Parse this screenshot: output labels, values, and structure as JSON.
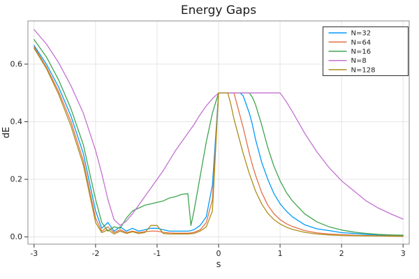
{
  "chart_data": {
    "type": "line",
    "title": "Energy Gaps",
    "xlabel": "s",
    "ylabel": "dE",
    "xlim": [
      -3.1,
      3.1
    ],
    "ylim": [
      -0.025,
      0.75
    ],
    "grid": true,
    "legend_position": "top-right",
    "xticks": [
      {
        "v": -3,
        "label": "-3"
      },
      {
        "v": -2,
        "label": "-2"
      },
      {
        "v": -1,
        "label": "-1"
      },
      {
        "v": 0,
        "label": "0"
      },
      {
        "v": 1,
        "label": "1"
      },
      {
        "v": 2,
        "label": "2"
      },
      {
        "v": 3,
        "label": "3"
      }
    ],
    "yticks": [
      {
        "v": 0.0,
        "label": "0.0"
      },
      {
        "v": 0.2,
        "label": "0.2"
      },
      {
        "v": 0.4,
        "label": "0.4"
      },
      {
        "v": 0.6,
        "label": "0.6"
      }
    ],
    "x": [
      -3.0,
      -2.8,
      -2.6,
      -2.4,
      -2.2,
      -2.0,
      -1.9,
      -1.8,
      -1.7,
      -1.6,
      -1.5,
      -1.4,
      -1.3,
      -1.2,
      -1.1,
      -1.0,
      -0.9,
      -0.8,
      -0.7,
      -0.6,
      -0.5,
      -0.45,
      -0.4,
      -0.3,
      -0.2,
      -0.1,
      0.0,
      0.1,
      0.15,
      0.2,
      0.25,
      0.3,
      0.35,
      0.4,
      0.5,
      0.55,
      0.6,
      0.7,
      0.8,
      0.9,
      1.0,
      1.1,
      1.2,
      1.4,
      1.6,
      1.8,
      2.0,
      2.2,
      2.4,
      2.6,
      2.8,
      3.0
    ],
    "series": [
      {
        "name": "N=32",
        "color": "#009AFA",
        "values": [
          0.665,
          0.6,
          0.52,
          0.42,
          0.29,
          0.09,
          0.03,
          0.05,
          0.02,
          0.035,
          0.02,
          0.03,
          0.02,
          0.025,
          0.03,
          0.03,
          0.025,
          0.02,
          0.02,
          0.02,
          0.02,
          0.022,
          0.025,
          0.04,
          0.07,
          0.18,
          0.5,
          0.5,
          0.5,
          0.5,
          0.5,
          0.5,
          0.5,
          0.49,
          0.43,
          0.39,
          0.34,
          0.26,
          0.2,
          0.15,
          0.115,
          0.09,
          0.07,
          0.042,
          0.028,
          0.022,
          0.015,
          0.012,
          0.009,
          0.007,
          0.006,
          0.005
        ]
      },
      {
        "name": "N=64",
        "color": "#E36F47",
        "values": [
          0.66,
          0.59,
          0.505,
          0.4,
          0.265,
          0.065,
          0.02,
          0.035,
          0.015,
          0.025,
          0.015,
          0.02,
          0.015,
          0.018,
          0.02,
          0.02,
          0.016,
          0.014,
          0.013,
          0.013,
          0.013,
          0.014,
          0.016,
          0.025,
          0.05,
          0.13,
          0.5,
          0.5,
          0.5,
          0.5,
          0.5,
          0.46,
          0.42,
          0.38,
          0.29,
          0.25,
          0.215,
          0.155,
          0.11,
          0.08,
          0.06,
          0.046,
          0.036,
          0.022,
          0.014,
          0.01,
          0.008,
          0.006,
          0.005,
          0.004,
          0.0035,
          0.003
        ]
      },
      {
        "name": "N=16",
        "color": "#3EA44E",
        "values": [
          0.685,
          0.625,
          0.545,
          0.445,
          0.32,
          0.13,
          0.05,
          0.02,
          0.035,
          0.03,
          0.065,
          0.09,
          0.1,
          0.11,
          0.115,
          0.12,
          0.125,
          0.135,
          0.14,
          0.148,
          0.15,
          0.04,
          0.09,
          0.21,
          0.33,
          0.43,
          0.5,
          0.5,
          0.5,
          0.5,
          0.5,
          0.5,
          0.5,
          0.5,
          0.5,
          0.485,
          0.46,
          0.39,
          0.31,
          0.245,
          0.195,
          0.155,
          0.125,
          0.08,
          0.052,
          0.035,
          0.024,
          0.017,
          0.012,
          0.009,
          0.007,
          0.006
        ]
      },
      {
        "name": "N=8",
        "color": "#C371D2",
        "values": [
          0.72,
          0.67,
          0.605,
          0.525,
          0.43,
          0.3,
          0.22,
          0.13,
          0.06,
          0.04,
          0.055,
          0.08,
          0.11,
          0.14,
          0.17,
          0.2,
          0.23,
          0.265,
          0.3,
          0.33,
          0.36,
          0.375,
          0.39,
          0.425,
          0.455,
          0.48,
          0.5,
          0.5,
          0.5,
          0.5,
          0.5,
          0.5,
          0.5,
          0.5,
          0.5,
          0.5,
          0.5,
          0.5,
          0.5,
          0.5,
          0.5,
          0.47,
          0.435,
          0.36,
          0.295,
          0.24,
          0.195,
          0.16,
          0.125,
          0.1,
          0.08,
          0.062
        ]
      },
      {
        "name": "N=128",
        "color": "#AC8D18",
        "values": [
          0.655,
          0.585,
          0.495,
          0.385,
          0.25,
          0.05,
          0.015,
          0.025,
          0.01,
          0.02,
          0.012,
          0.018,
          0.012,
          0.015,
          0.04,
          0.04,
          0.012,
          0.01,
          0.01,
          0.01,
          0.01,
          0.011,
          0.012,
          0.02,
          0.035,
          0.09,
          0.5,
          0.5,
          0.5,
          0.46,
          0.41,
          0.37,
          0.33,
          0.29,
          0.22,
          0.19,
          0.16,
          0.115,
          0.082,
          0.06,
          0.045,
          0.034,
          0.026,
          0.016,
          0.01,
          0.007,
          0.005,
          0.004,
          0.0035,
          0.003,
          0.0025,
          0.002
        ]
      }
    ],
    "style": {
      "background": "#ffffff",
      "grid_color": "#e2e2e2",
      "frame_color": "#8e8e8e",
      "tick_color": "#333333",
      "legend_border": "#2b2b2b",
      "legend_fill": "#ffffff"
    }
  }
}
